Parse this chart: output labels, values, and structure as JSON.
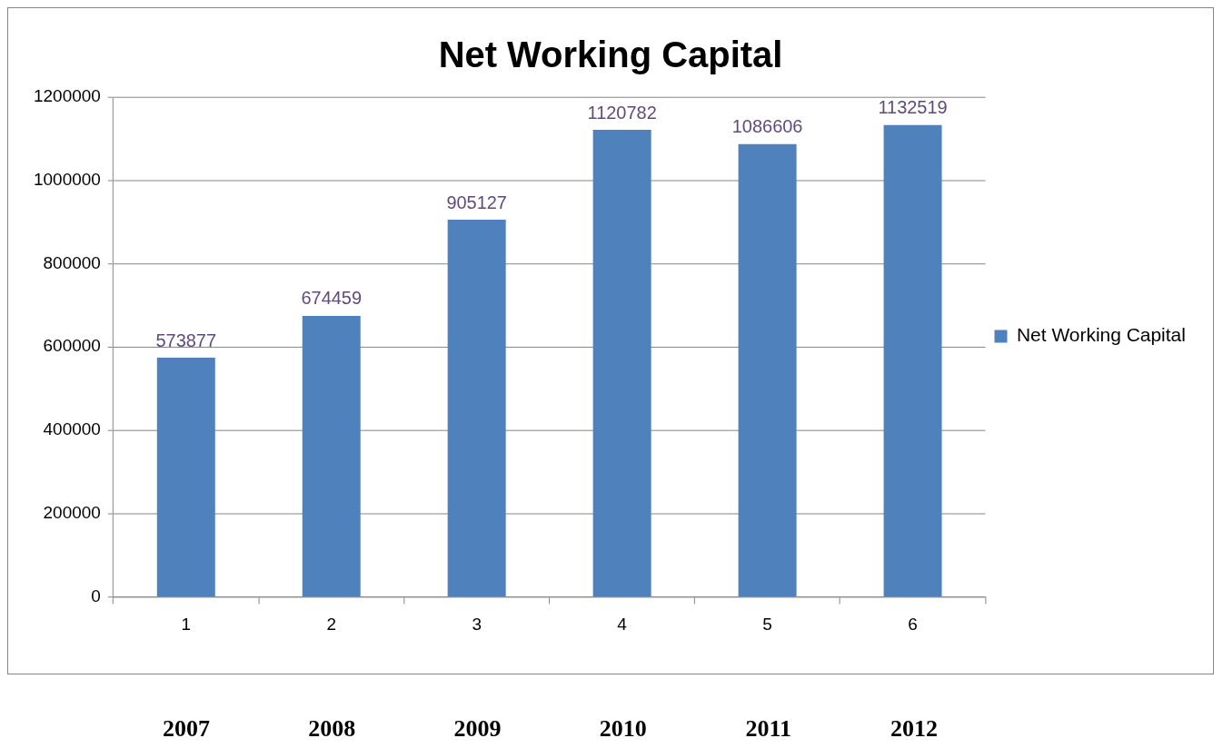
{
  "chart_data": {
    "type": "bar",
    "title": "Net Working Capital",
    "categories": [
      "1",
      "2",
      "3",
      "4",
      "5",
      "6"
    ],
    "series": [
      {
        "name": "Net Working Capital",
        "color": "#4f81bd",
        "values": [
          573877,
          674459,
          905127,
          1120782,
          1086606,
          1132519
        ]
      }
    ],
    "ylim": [
      0,
      1200000
    ],
    "yticks": [
      0,
      200000,
      400000,
      600000,
      800000,
      1000000,
      1200000
    ],
    "grid": "y",
    "legend": "right",
    "data_labels": true,
    "annotations": [
      "2007",
      "2008",
      "2009",
      "2010",
      "2011",
      "2012"
    ]
  }
}
